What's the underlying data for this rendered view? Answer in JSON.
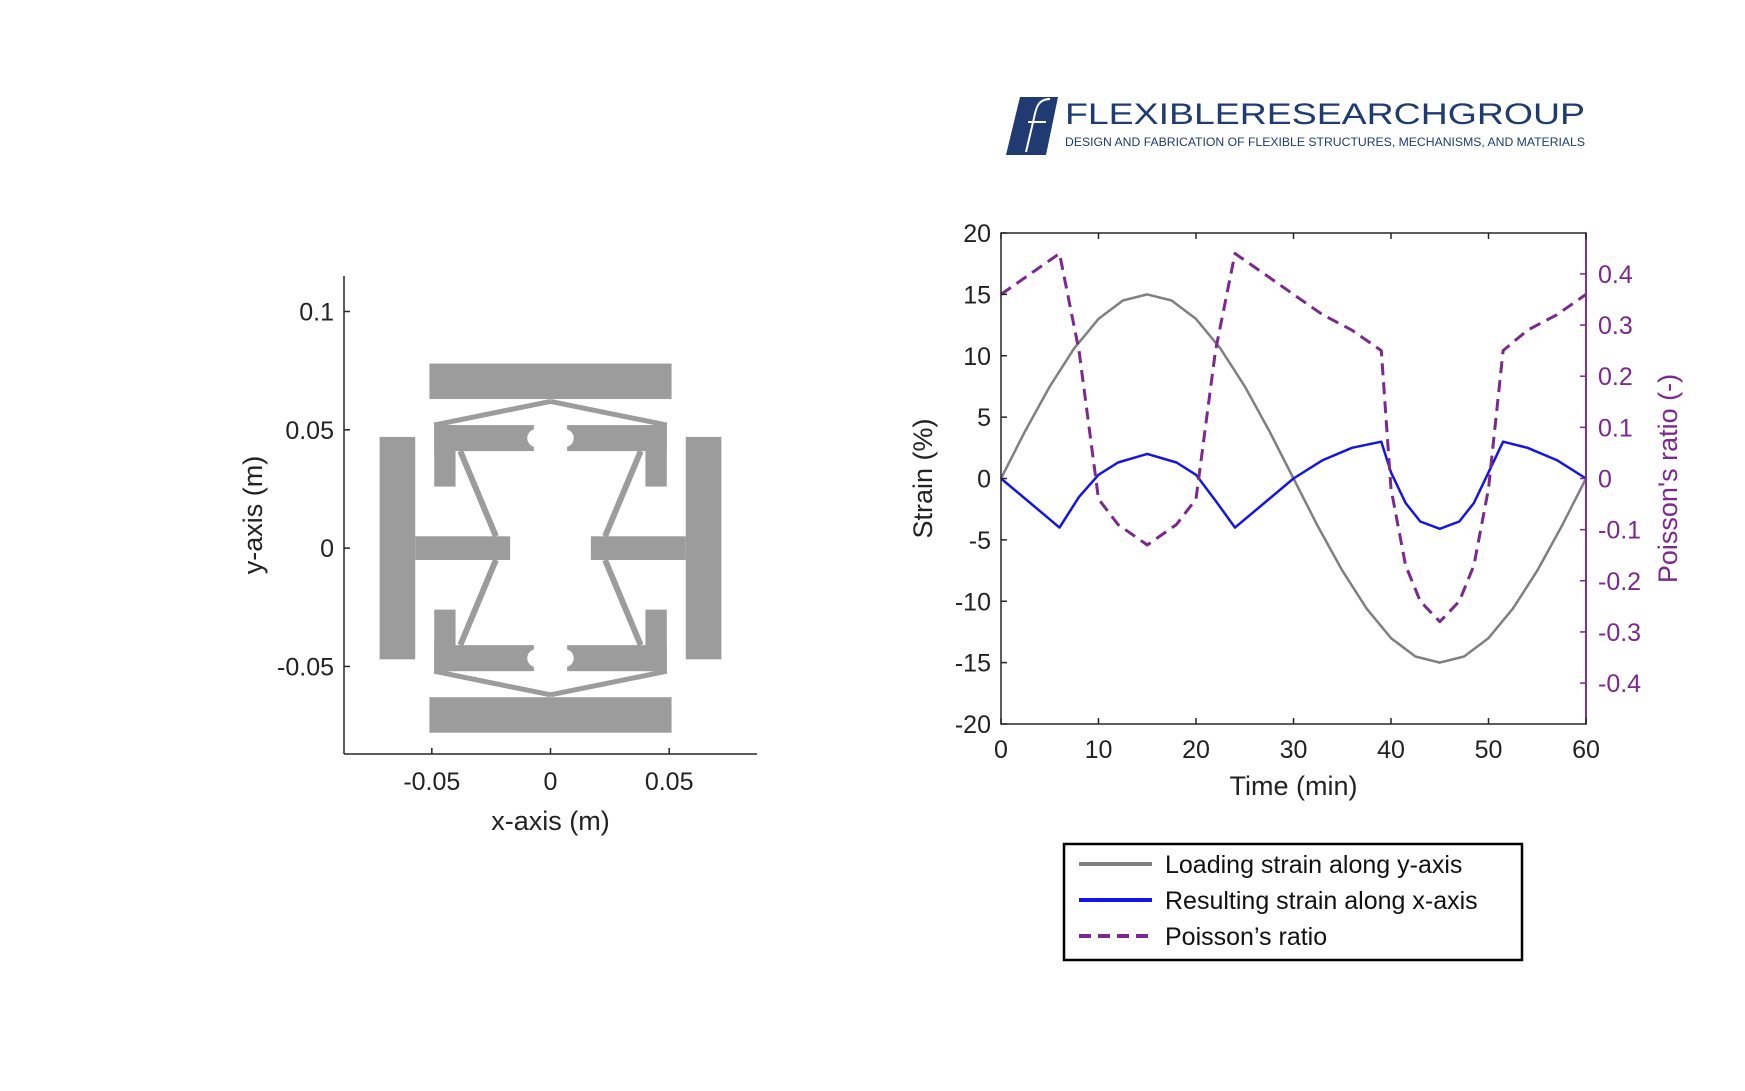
{
  "logo": {
    "title": "FLEXIBLERESEARCHGROUP",
    "tagline": "DESIGN AND FABRICATION OF FLEXIBLE STRUCTURES, MECHANISMS, AND MATERIALS",
    "colors": {
      "mark": "#1f3b72",
      "title": "#1f3b72",
      "tagline": "#1f3b72"
    }
  },
  "colors": {
    "structure": "#9c9c9c",
    "loading": "#808080",
    "resulting": "#1414e6",
    "poisson": "#7a2a8c",
    "axis": "#262626"
  },
  "chart_data": [
    {
      "type": "diagram",
      "xlabel": "x-axis (m)",
      "ylabel": "y-axis (m)",
      "xlim": [
        -0.087,
        0.087
      ],
      "ylim": [
        -0.087,
        0.115
      ],
      "xticks": [
        -0.05,
        0,
        0.05
      ],
      "xtick_labels": [
        "-0.05",
        "0",
        "0.05"
      ],
      "yticks": [
        -0.05,
        0,
        0.05,
        0.1
      ],
      "ytick_labels": [
        "-0.05",
        "0",
        "0.05",
        "0.1"
      ],
      "grid": false
    },
    {
      "type": "line",
      "xlabel": "Time (min)",
      "ylabel": "Strain (%)",
      "y2label": "Poisson's ratio (-)",
      "xlim": [
        0,
        60
      ],
      "ylim": [
        -20,
        20
      ],
      "y2lim": [
        -0.48,
        0.48
      ],
      "xticks": [
        0,
        10,
        20,
        30,
        40,
        50,
        60
      ],
      "xtick_labels": [
        "0",
        "10",
        "20",
        "30",
        "40",
        "50",
        "60"
      ],
      "yticks": [
        20,
        15,
        10,
        5,
        0,
        -5,
        -10,
        -15,
        -20
      ],
      "ytick_labels": [
        "20",
        "15",
        "10",
        "5",
        "0",
        "-5",
        "-10",
        "-15",
        "-20"
      ],
      "y2ticks": [
        0.4,
        0.3,
        0.2,
        0.1,
        0,
        -0.1,
        -0.2,
        -0.3,
        -0.4
      ],
      "y2tick_labels": [
        "0.4",
        "0.3",
        "0.2",
        "0.1",
        "0",
        "-0.1",
        "-0.2",
        "-0.3",
        "-0.4"
      ],
      "grid": false,
      "legend_position": "below",
      "series": [
        {
          "name": "Loading strain along y-axis",
          "axis": "left",
          "style": "solid",
          "x": [
            0,
            2.5,
            5,
            7.5,
            10,
            12.5,
            15,
            17.5,
            20,
            22.5,
            25,
            27.5,
            30,
            32.5,
            35,
            37.5,
            40,
            42.5,
            45,
            47.5,
            50,
            52.5,
            55,
            57.5,
            60
          ],
          "y": [
            0,
            3.9,
            7.5,
            10.6,
            13,
            14.5,
            15,
            14.5,
            13,
            10.6,
            7.5,
            3.9,
            0,
            -3.9,
            -7.5,
            -10.6,
            -13,
            -14.5,
            -15,
            -14.5,
            -13,
            -10.6,
            -7.5,
            -3.9,
            0
          ]
        },
        {
          "name": "Resulting strain along x-axis",
          "axis": "left",
          "style": "solid",
          "x": [
            0,
            3,
            6,
            8,
            10,
            12,
            15,
            18,
            20,
            22,
            24,
            27,
            30,
            33,
            36,
            39,
            40,
            41.5,
            43,
            45,
            47,
            48.5,
            50,
            51.5,
            54,
            57,
            60
          ],
          "y": [
            0,
            -2,
            -4,
            -1.5,
            0.3,
            1.3,
            2,
            1.3,
            0.3,
            -1.8,
            -4,
            -2,
            0,
            1.5,
            2.5,
            3,
            0.5,
            -2,
            -3.5,
            -4.1,
            -3.5,
            -2,
            0.5,
            3,
            2.5,
            1.5,
            0
          ]
        },
        {
          "name": "Poisson’s ratio",
          "axis": "right",
          "style": "dashed",
          "x": [
            0,
            3,
            6,
            8,
            10,
            12,
            15,
            18,
            20,
            22,
            24,
            27,
            30,
            33,
            36,
            39,
            40,
            41.5,
            43,
            45,
            47,
            48.5,
            50,
            51.5,
            54,
            57,
            60
          ],
          "y": [
            0.36,
            0.4,
            0.44,
            0.25,
            -0.04,
            -0.09,
            -0.13,
            -0.09,
            -0.04,
            0.25,
            0.44,
            0.4,
            0.36,
            0.32,
            0.29,
            0.25,
            -0.02,
            -0.17,
            -0.24,
            -0.28,
            -0.24,
            -0.17,
            -0.02,
            0.25,
            0.29,
            0.32,
            0.36
          ]
        }
      ]
    }
  ]
}
